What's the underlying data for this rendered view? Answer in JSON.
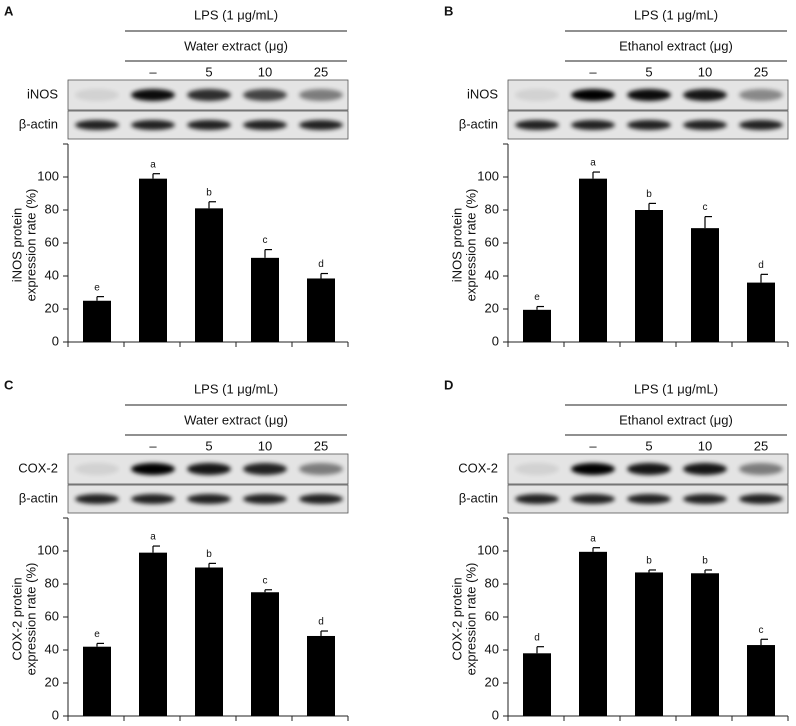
{
  "chart_data": [
    {
      "type": "bar",
      "panel": "A",
      "header": "LPS (1 μg/mL)",
      "subheader": "Water extract (μg)",
      "categories": [
        null,
        "–",
        "5",
        "10",
        "25"
      ],
      "blot_labels": [
        "iNOS",
        "β-actin"
      ],
      "y_label": [
        "iNOS protein",
        "expression rate (%)"
      ],
      "values": [
        25,
        99,
        81,
        51,
        38.5
      ],
      "errors": [
        2.5,
        3,
        4,
        5,
        3
      ],
      "annotations": [
        "e",
        "a",
        "b",
        "c",
        "d"
      ],
      "color": "#000000",
      "ylim": [
        0,
        120
      ],
      "yticks": [
        0,
        20,
        40,
        60,
        80,
        100
      ]
    },
    {
      "type": "bar",
      "panel": "B",
      "header": "LPS (1 μg/mL)",
      "subheader": "Ethanol extract (μg)",
      "categories": [
        null,
        "–",
        "5",
        "10",
        "25"
      ],
      "blot_labels": [
        "iNOS",
        "β-actin"
      ],
      "y_label": [
        "iNOS protein",
        "expression rate (%)"
      ],
      "values": [
        19.5,
        99,
        80,
        69,
        36
      ],
      "errors": [
        2,
        4,
        4,
        7,
        5
      ],
      "annotations": [
        "e",
        "a",
        "b",
        "c",
        "d"
      ],
      "color": "#000000",
      "ylim": [
        0,
        120
      ],
      "yticks": [
        0,
        20,
        40,
        60,
        80,
        100
      ]
    },
    {
      "type": "bar",
      "panel": "C",
      "header": "LPS (1 μg/mL)",
      "subheader": "Water extract (μg)",
      "categories": [
        null,
        "–",
        "5",
        "10",
        "25"
      ],
      "blot_labels": [
        "COX-2",
        "β-actin"
      ],
      "y_label": [
        "COX-2 protein",
        "expression rate (%)"
      ],
      "values": [
        42,
        99,
        90,
        75,
        48.5
      ],
      "errors": [
        2,
        4,
        2.5,
        1.5,
        3
      ],
      "annotations": [
        "e",
        "a",
        "b",
        "c",
        "d"
      ],
      "color": "#000000",
      "ylim": [
        0,
        120
      ],
      "yticks": [
        0,
        20,
        40,
        60,
        80,
        100
      ]
    },
    {
      "type": "bar",
      "panel": "D",
      "header": "LPS (1 μg/mL)",
      "subheader": "Ethanol extract (μg)",
      "categories": [
        null,
        "–",
        "5",
        "10",
        "25"
      ],
      "blot_labels": [
        "COX-2",
        "β-actin"
      ],
      "y_label": [
        "COX-2 protein",
        "expression rate (%)"
      ],
      "values": [
        38,
        99.5,
        87,
        86.5,
        43
      ],
      "errors": [
        4,
        2.5,
        1.5,
        2,
        3.5
      ],
      "annotations": [
        "d",
        "a",
        "b",
        "b",
        "c"
      ],
      "color": "#000000",
      "ylim": [
        0,
        120
      ],
      "yticks": [
        0,
        20,
        40,
        60,
        80,
        100
      ]
    }
  ]
}
